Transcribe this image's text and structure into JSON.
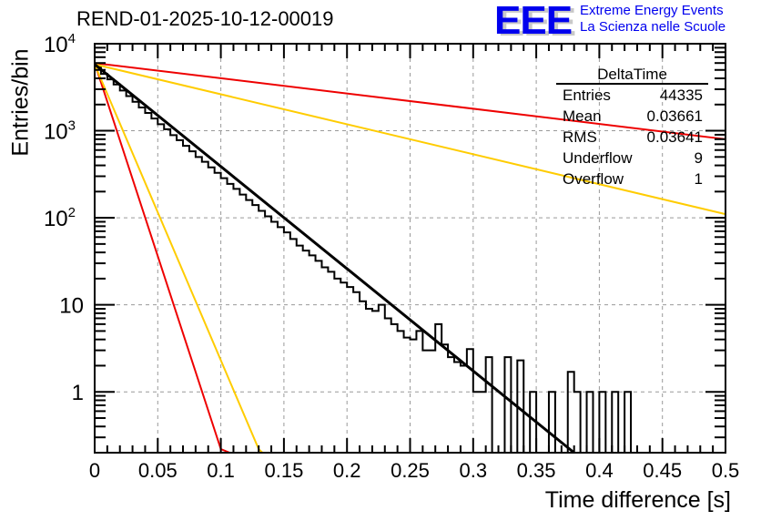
{
  "chart_data": {
    "type": "bar",
    "histogram_style": "step",
    "title": "REND-01-2025-10-12-00019",
    "xlabel": "Time difference [s]",
    "ylabel": "Entries/bin",
    "xlim": [
      0,
      0.5
    ],
    "ylim": [
      0.2,
      10000
    ],
    "yscale": "log",
    "grid": true,
    "x_ticks": [
      "0",
      "0.05",
      "0.1",
      "0.15",
      "0.2",
      "0.25",
      "0.3",
      "0.35",
      "0.4",
      "0.45",
      "0.5"
    ],
    "x_tick_values": [
      0,
      0.05,
      0.1,
      0.15,
      0.2,
      0.25,
      0.3,
      0.35,
      0.4,
      0.45,
      0.5
    ],
    "y_ticks": [
      {
        "value": 10000,
        "base": "10",
        "exp": "4"
      },
      {
        "value": 1000,
        "base": "10",
        "exp": "3"
      },
      {
        "value": 100,
        "base": "10",
        "exp": "2"
      },
      {
        "value": 10,
        "base": "10",
        "exp": ""
      },
      {
        "value": 1,
        "base": "1",
        "exp": ""
      }
    ],
    "bin_width": 0.005,
    "bin_start": 0,
    "histogram_values": [
      5400,
      4500,
      3900,
      3400,
      2900,
      2500,
      2150,
      1850,
      1600,
      1380,
      1190,
      1040,
      890,
      780,
      670,
      580,
      500,
      440,
      380,
      328,
      285,
      245,
      215,
      185,
      160,
      140,
      120,
      104,
      90,
      78,
      68,
      57,
      48,
      42,
      37,
      32,
      27,
      24,
      20,
      18,
      16,
      14,
      11,
      9,
      8.5,
      10,
      7,
      6,
      5,
      4.2,
      4,
      5,
      3,
      3,
      6,
      3.5,
      2.5,
      2.2,
      2,
      3.1,
      1,
      1,
      2.5,
      0.2,
      0.2,
      2.5,
      0.2,
      2.3,
      0.2,
      1,
      0.2,
      0.2,
      1,
      0.2,
      0.2,
      1.7,
      1,
      0.2,
      1,
      0.2,
      1,
      0.2,
      1,
      0.2,
      1,
      0.2,
      0.2,
      0.2,
      0.2,
      0.2,
      0.2,
      0.2,
      0.2,
      0.2,
      0.2,
      0.2,
      0.2,
      0.2,
      0.2,
      0.2
    ],
    "series": [
      {
        "name": "exponential fit",
        "color": "#000000",
        "type": "line",
        "x": [
          0,
          0.38
        ],
        "y": [
          5800,
          0.2
        ]
      },
      {
        "name": "reference slow (red)",
        "color": "#ee0000",
        "type": "line",
        "x": [
          0,
          0.5
        ],
        "y": [
          6000,
          800
        ]
      },
      {
        "name": "reference slow (yellow)",
        "color": "#ffcc00",
        "type": "line",
        "x": [
          0,
          0.5
        ],
        "y": [
          5800,
          110
        ]
      },
      {
        "name": "reference fast (red)",
        "color": "#ee0000",
        "type": "line",
        "x": [
          0,
          0.1,
          0.107
        ],
        "y": [
          6000,
          0.22,
          0.2
        ]
      },
      {
        "name": "reference fast (yellow)",
        "color": "#ffcc00",
        "type": "line",
        "x": [
          0,
          0.13,
          0.133
        ],
        "y": [
          5800,
          0.22,
          0.2
        ]
      }
    ]
  },
  "stats_box": {
    "title": "DeltaTime",
    "rows": [
      {
        "label": "Entries",
        "value": "44335"
      },
      {
        "label": "Mean",
        "value": "0.03661"
      },
      {
        "label": "RMS",
        "value": "0.03641"
      },
      {
        "label": "Underflow",
        "value": "9"
      },
      {
        "label": "Overflow",
        "value": "1"
      }
    ]
  },
  "logo": {
    "letters": "EEE",
    "line1": "Extreme Energy Events",
    "line2": "La Scienza nelle Scuole",
    "color": "#0000ee"
  }
}
